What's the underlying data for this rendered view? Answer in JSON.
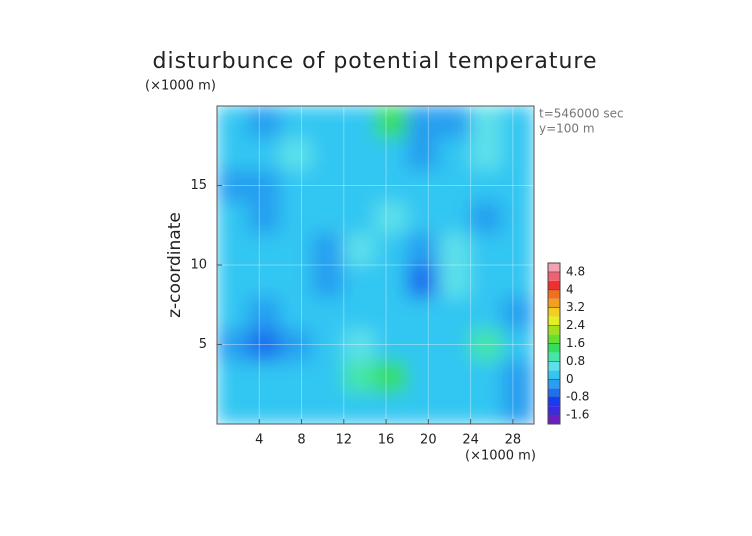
{
  "chart_data": {
    "type": "heatmap",
    "title": "disturbunce of potential temperature",
    "y_unit": "(×1000 m)",
    "x_unit": "(×1000 m)",
    "ylabel": "z-coordinate",
    "annotations": [
      "t=546000 sec",
      "y=100 m"
    ],
    "x": [
      1.5,
      4.5,
      7.5,
      10.5,
      13.5,
      16.5,
      19.5,
      22.5,
      25.5,
      28.5
    ],
    "y": [
      1,
      3,
      5,
      7,
      9,
      11,
      13,
      15,
      17,
      19
    ],
    "z": [
      [
        0.2,
        0.3,
        0.1,
        0.2,
        0.3,
        0.3,
        0.2,
        0.2,
        0.1,
        -0.2
      ],
      [
        0.2,
        0.1,
        0.2,
        0.3,
        0.9,
        1.2,
        0.3,
        0.2,
        0.1,
        -0.1
      ],
      [
        -0.2,
        -0.5,
        -0.4,
        0.1,
        0.5,
        0.3,
        0.2,
        0.3,
        0.9,
        0.2
      ],
      [
        0.2,
        -0.3,
        0.1,
        0.3,
        0.2,
        0.1,
        0.2,
        0.4,
        0.3,
        -0.2
      ],
      [
        0.3,
        0.2,
        0.1,
        -0.3,
        0.4,
        0.3,
        -0.5,
        0.5,
        0.2,
        0.1
      ],
      [
        0.1,
        0.3,
        0.2,
        -0.4,
        0.5,
        0.4,
        -0.3,
        0.6,
        0.3,
        0.2
      ],
      [
        0.2,
        -0.2,
        0.4,
        0.1,
        0.3,
        0.5,
        0.2,
        0.3,
        -0.2,
        0.3
      ],
      [
        -0.3,
        -0.4,
        0.2,
        0.4,
        0.3,
        0.3,
        0.1,
        0.2,
        0.4,
        0.1
      ],
      [
        0.1,
        0.2,
        0.5,
        0.1,
        0.4,
        0.3,
        -0.2,
        0.3,
        0.6,
        0.2
      ],
      [
        0.1,
        -0.2,
        0.2,
        0.4,
        0.2,
        1.4,
        -0.3,
        -0.2,
        0.5,
        0.1
      ]
    ],
    "xlim": [
      0,
      30
    ],
    "xticks": [
      4,
      8,
      12,
      16,
      20,
      24,
      28
    ],
    "ylim": [
      0,
      20
    ],
    "yticks": [
      5,
      10,
      15
    ],
    "grid": true,
    "clim": [
      -2,
      5.2
    ],
    "cticks": [
      4.8,
      4,
      3.2,
      2.4,
      1.6,
      0.8,
      0,
      -0.8,
      -1.6
    ],
    "colors": [
      "#6a1fc0",
      "#3a2be0",
      "#1a3cf0",
      "#1e70ee",
      "#289ff0",
      "#33c6f2",
      "#5ce0ea",
      "#45e6a8",
      "#35de60",
      "#66e030",
      "#a4e020",
      "#e2f020",
      "#f2d020",
      "#f2a020",
      "#f07020",
      "#ef3030",
      "#f06272",
      "#f2a2b2"
    ]
  }
}
